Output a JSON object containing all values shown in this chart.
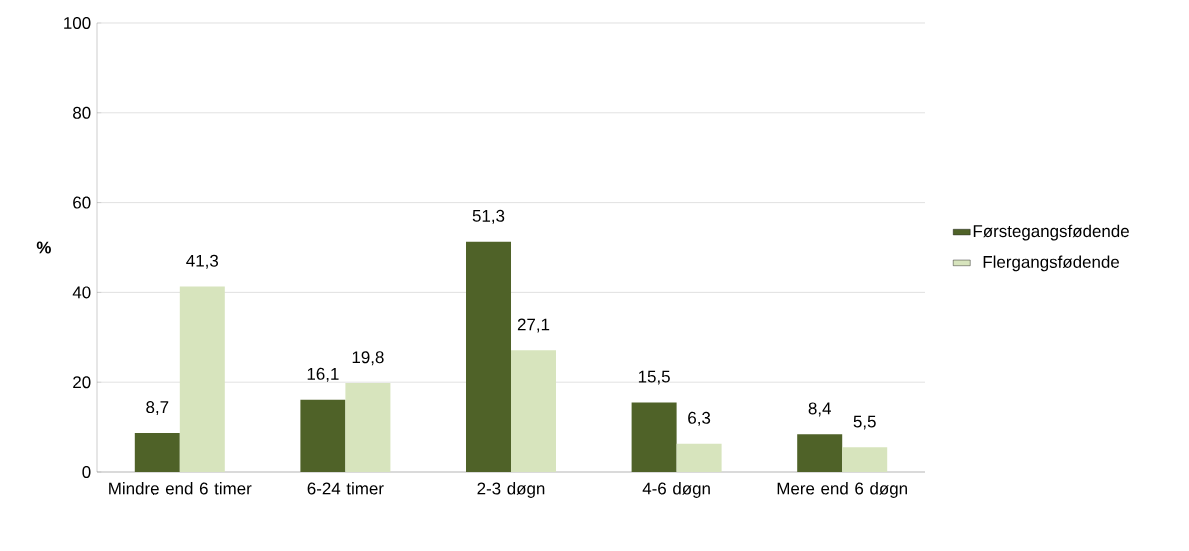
{
  "chart_data": {
    "type": "bar",
    "ylabel": "%",
    "categories": [
      "Mindre end 6 timer",
      "6-24 timer",
      "2-3 døgn",
      "4-6 døgn",
      "Mere end 6 døgn"
    ],
    "series": [
      {
        "name": "Førstegangsfødende",
        "color": "#4f6228",
        "values": [
          8.7,
          16.1,
          51.3,
          15.5,
          8.4
        ],
        "value_labels": [
          "8,7",
          "16,1",
          "51,3",
          "15,5",
          "8,4"
        ]
      },
      {
        "name": "Flergangsfødende",
        "color": "#d7e4bd",
        "values": [
          41.3,
          19.8,
          27.1,
          6.3,
          5.5
        ],
        "value_labels": [
          "41,3",
          "19,8",
          "27,1",
          "6,3",
          "5,5"
        ]
      }
    ],
    "ylim": [
      0,
      100
    ],
    "yticks": [
      0,
      20,
      40,
      60,
      80,
      100
    ],
    "grid": "y",
    "legend": "right"
  }
}
